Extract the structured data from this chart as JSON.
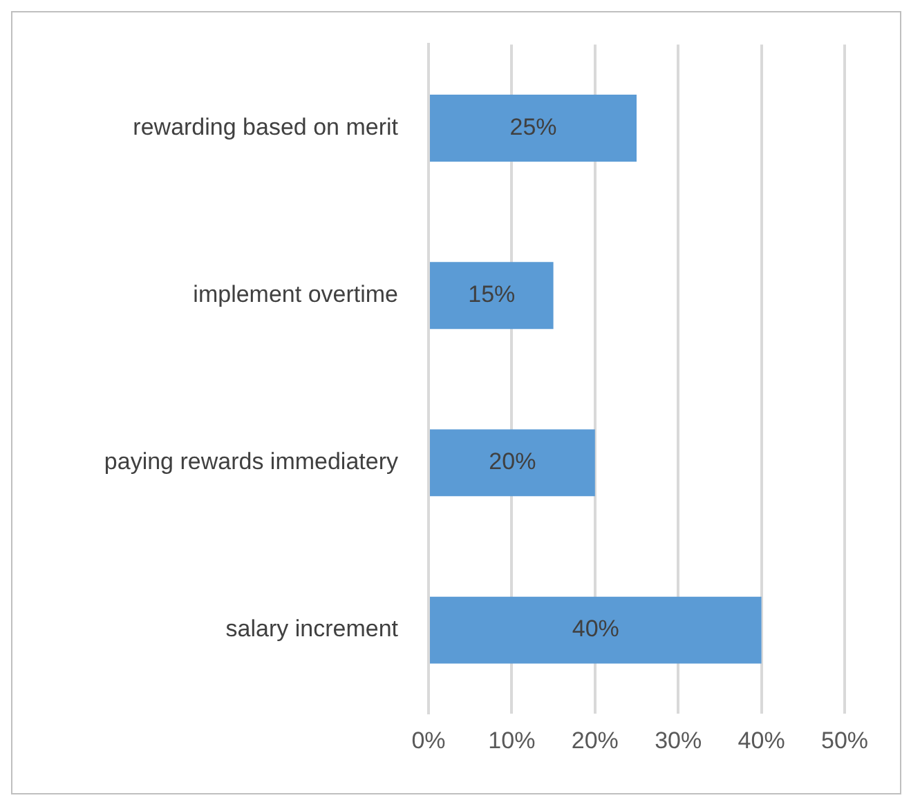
{
  "chart_data": {
    "type": "bar",
    "orientation": "horizontal",
    "categories": [
      "rewarding based on merit",
      "implement overtime",
      "paying rewards immediatery",
      "salary increment"
    ],
    "values": [
      25,
      15,
      20,
      40
    ],
    "color": "#5b9bd5",
    "value_labels": [
      "25%",
      "15%",
      "20%",
      "40%"
    ],
    "xlim": [
      0,
      50
    ],
    "xticks": [
      {
        "value": 0,
        "label": "0%"
      },
      {
        "value": 10,
        "label": "10%"
      },
      {
        "value": 20,
        "label": "20%"
      },
      {
        "value": 30,
        "label": "30%"
      },
      {
        "value": 40,
        "label": "40%"
      },
      {
        "value": 50,
        "label": "50%"
      }
    ],
    "grid": "x",
    "legend": false
  }
}
